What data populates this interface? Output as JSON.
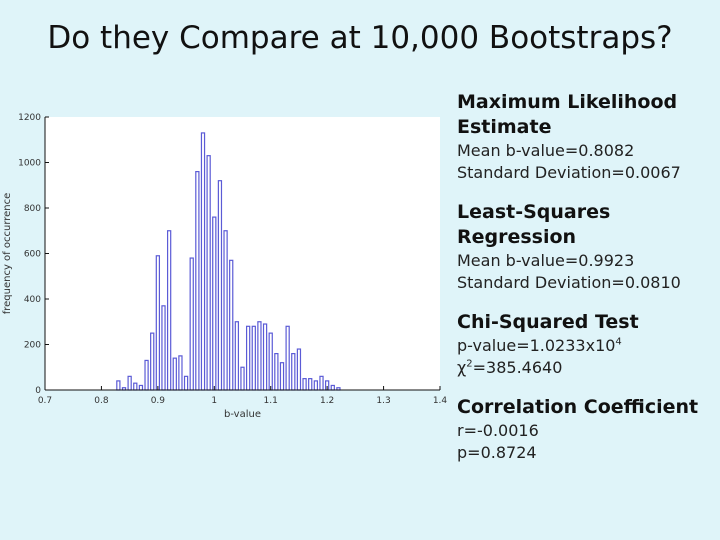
{
  "slide": {
    "title": "Do they Compare at 10,000 Bootstraps?"
  },
  "chart_data": {
    "type": "bar",
    "xlabel": "b-value",
    "ylabel": "frequency of occurrence",
    "xlim": [
      0.7,
      1.4
    ],
    "ylim": [
      0,
      1200
    ],
    "xticks": [
      "0.7",
      "0.8",
      "0.9",
      "1",
      "1.1",
      "1.2",
      "1.3",
      "1.4"
    ],
    "yticks": [
      "0",
      "200",
      "400",
      "600",
      "800",
      "1000",
      "1200"
    ],
    "x": [
      0.83,
      0.84,
      0.85,
      0.86,
      0.87,
      0.88,
      0.89,
      0.9,
      0.91,
      0.92,
      0.93,
      0.94,
      0.95,
      0.96,
      0.97,
      0.98,
      0.99,
      1.0,
      1.01,
      1.02,
      1.03,
      1.04,
      1.05,
      1.06,
      1.07,
      1.08,
      1.09,
      1.1,
      1.11,
      1.12,
      1.13,
      1.14,
      1.15,
      1.16,
      1.17,
      1.18,
      1.19,
      1.2,
      1.21,
      1.22
    ],
    "values": [
      40,
      10,
      60,
      30,
      20,
      130,
      250,
      590,
      370,
      700,
      140,
      150,
      60,
      580,
      960,
      1130,
      1030,
      760,
      920,
      700,
      570,
      300,
      100,
      280,
      280,
      300,
      290,
      250,
      160,
      120,
      280,
      160,
      180,
      50,
      50,
      40,
      60,
      40,
      20,
      10
    ],
    "grid": false,
    "legend": "none"
  },
  "results": [
    {
      "heading": "Maximum Likelihood Estimate",
      "lines": [
        "Mean b-value=0.8082",
        "Standard Deviation=0.0067"
      ]
    },
    {
      "heading": "Least-Squares Regression",
      "lines": [
        "Mean b-value=0.9923",
        "Standard Deviation=0.0810"
      ]
    },
    {
      "heading": "Chi-Squared Test",
      "lines": []
    },
    {
      "heading": "Correlation Coefficient",
      "lines": [
        "r=-0.0016",
        "p=0.8724"
      ]
    }
  ],
  "chi": {
    "p_prefix": "p-value=1.0233x10",
    "p_exponent": "4",
    "chi_prefix": "χ",
    "chi_exponent": "2",
    "chi_value": "=385.4640"
  },
  "colors": {
    "bar_stroke": "#5b5bd6",
    "axis": "#111111",
    "plot_bg": "#ffffff"
  }
}
